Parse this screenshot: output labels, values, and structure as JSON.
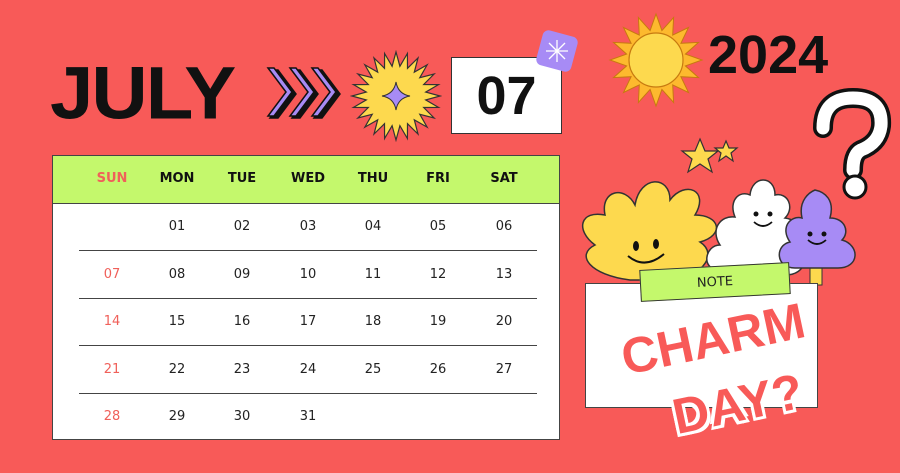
{
  "title": {
    "month": "JULY",
    "month_number": "07",
    "year": "2024"
  },
  "weekdays": [
    "SUN",
    "MON",
    "TUE",
    "WED",
    "THU",
    "FRI",
    "SAT"
  ],
  "weeks": [
    [
      "",
      "01",
      "02",
      "03",
      "04",
      "05",
      "06"
    ],
    [
      "07",
      "08",
      "09",
      "10",
      "11",
      "12",
      "13"
    ],
    [
      "14",
      "15",
      "16",
      "17",
      "18",
      "19",
      "20"
    ],
    [
      "21",
      "22",
      "23",
      "24",
      "25",
      "26",
      "27"
    ],
    [
      "28",
      "29",
      "30",
      "31",
      "",
      "",
      ""
    ]
  ],
  "note": {
    "label": "NOTE",
    "line1": "CHARM",
    "line2": "DAY?"
  },
  "decorations": [
    "triple-arrow-icon",
    "sunburst-sparkle-icon",
    "sparkle-sticker-icon",
    "sun-icon",
    "question-mark-icon",
    "star-icon",
    "smiley-flower-icon",
    "smiley-cloud-tree-icon"
  ],
  "colors": {
    "background": "#f85a58",
    "header": "#c4f86c",
    "accent_purple": "#a78bf5",
    "accent_yellow": "#fdd94e",
    "sunday": "#f0605a"
  }
}
